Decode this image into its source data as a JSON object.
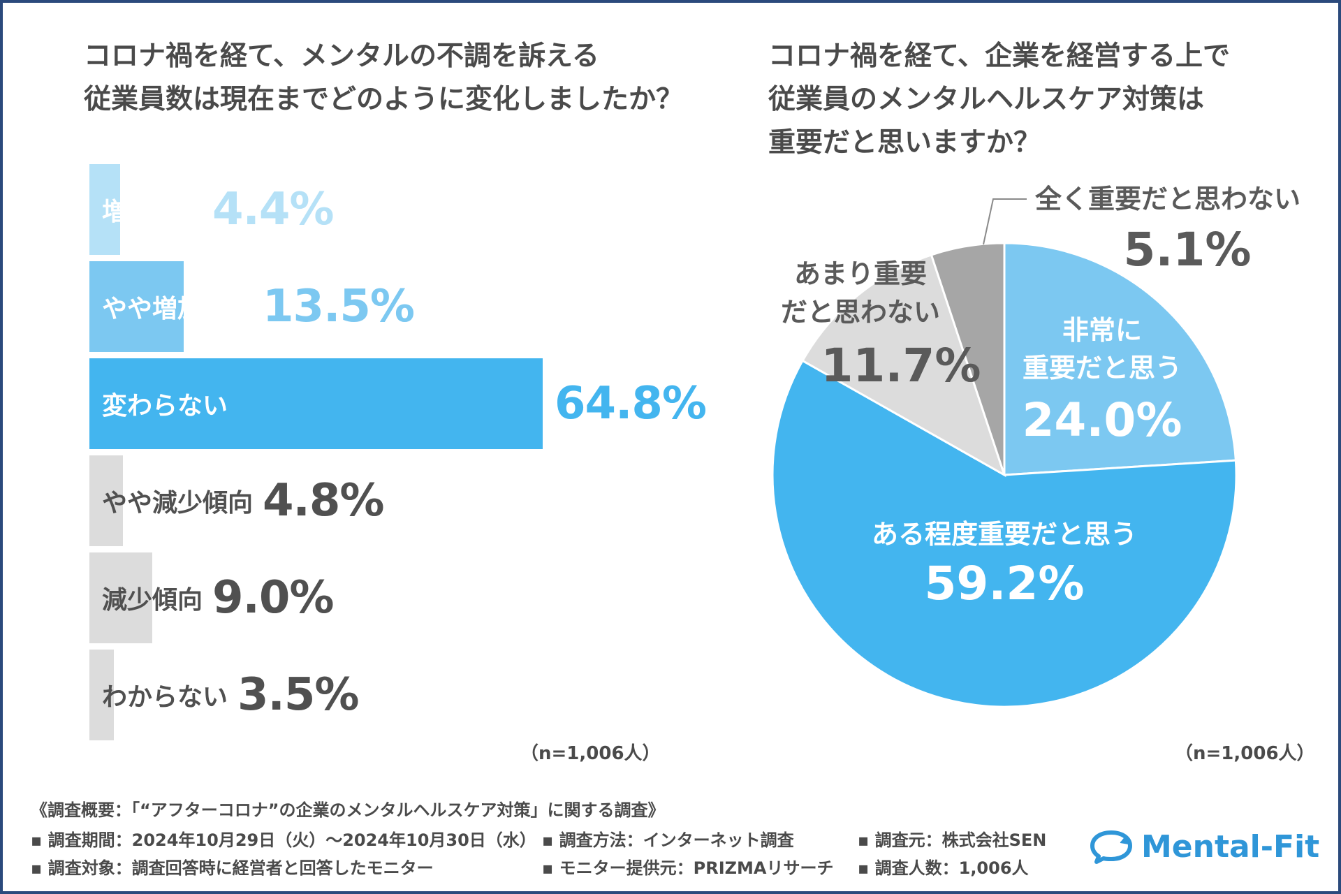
{
  "colors": {
    "very_light_blue": "#b5e1f7",
    "light_blue": "#7cc8f1",
    "blue": "#43b5ef",
    "light_gray": "#dcdcdc",
    "mid_gray": "#a6a6a6",
    "text_dark": "#505050",
    "brand": "#2f96d8"
  },
  "left": {
    "title_lines": [
      "コロナ禍を経て、メンタルの不調を訴える",
      "従業員数は現在までどのように変化しましたか？"
    ],
    "n_label": "（n=1,006人）"
  },
  "right": {
    "title_lines": [
      "コロナ禍を経て、企業を経営する上で",
      "従業員のメンタルヘルスケア対策は",
      "重要だと思いますか？"
    ],
    "n_label": "（n=1,006人）"
  },
  "chart_data": [
    {
      "type": "bar",
      "orientation": "horizontal",
      "title": "コロナ禍を経て、メンタルの不調を訴える従業員数は現在までどのように変化しましたか？",
      "categories": [
        "増加傾向",
        "やや増加傾向",
        "変わらない",
        "やや減少傾向",
        "減少傾向",
        "わからない"
      ],
      "values": [
        4.4,
        13.5,
        64.8,
        4.8,
        9.0,
        3.5
      ],
      "value_labels": [
        "4.4%",
        "13.5%",
        "64.8%",
        "4.8%",
        "9.0%",
        "3.5%"
      ],
      "unit": "%",
      "xlim": [
        0,
        100
      ]
    },
    {
      "type": "pie",
      "title": "コロナ禍を経て、企業を経営する上で従業員のメンタルヘルスケア対策は重要だと思いますか？",
      "slices": [
        {
          "label_lines": [
            "非常に",
            "重要だと思う"
          ],
          "value": 24.0,
          "value_label": "24.0%"
        },
        {
          "label_lines": [
            "ある程度重要だと思う"
          ],
          "value": 59.2,
          "value_label": "59.2%"
        },
        {
          "label_lines": [
            "あまり重要",
            "だと思わない"
          ],
          "value": 11.7,
          "value_label": "11.7%"
        },
        {
          "label_lines": [
            "全く重要だと思わない"
          ],
          "value": 5.1,
          "value_label": "5.1%"
        }
      ]
    }
  ],
  "footer": {
    "heading": "《調査概要：「“アフターコロナ”の企業のメンタルヘルスケア対策」に関する調査》",
    "items": [
      "▪ 調査期間：2024年10月29日（火）〜2024年10月30日（水）",
      "▪ 調査方法：インターネット調査",
      "▪ 調査元：株式会社SEN",
      "▪ 調査対象：調査回答時に経営者と回答したモニター",
      "▪ モニター提供元：PRIZMAリサーチ",
      "▪ 調査人数：1,006人"
    ]
  },
  "logo": {
    "text": "Mental-Fit",
    "icon": "speech-bubble-refresh-icon"
  }
}
